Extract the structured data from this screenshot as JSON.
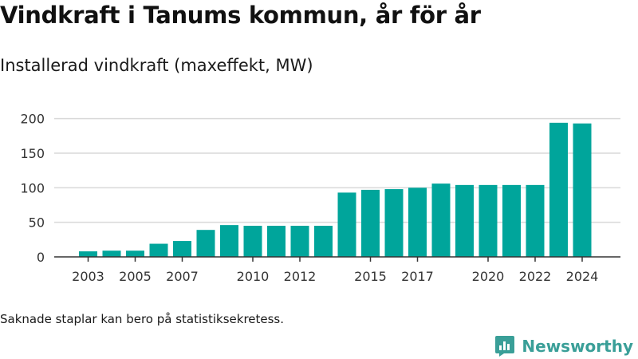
{
  "header": {
    "title": "Vindkraft i Tanums kommun, år för år",
    "subtitle": "Installerad vindkraft (maxeffekt, MW)"
  },
  "footnote": "Saknade staplar kan bero på statistiksekretess.",
  "brand": {
    "name": "Newsworthy",
    "icon": "newsworthy-logo-icon",
    "color": "#3a9f98"
  },
  "colors": {
    "bar": "#00a59b",
    "grid": "#d9d9d9",
    "axis": "#333333"
  },
  "chart_data": {
    "type": "bar",
    "title": "",
    "xlabel": "",
    "ylabel": "",
    "ylim": [
      0,
      210
    ],
    "yticks": [
      0,
      50,
      100,
      150,
      200
    ],
    "xtick_labels": [
      "2003",
      "2005",
      "2007",
      "2010",
      "2012",
      "2015",
      "2017",
      "2020",
      "2022",
      "2024"
    ],
    "categories": [
      "2003",
      "2004",
      "2005",
      "2006",
      "2007",
      "2008",
      "2009",
      "2010",
      "2011",
      "2012",
      "2013",
      "2014",
      "2015",
      "2016",
      "2017",
      "2018",
      "2019",
      "2020",
      "2021",
      "2022",
      "2023",
      "2024"
    ],
    "values": [
      8,
      9,
      9,
      19,
      23,
      39,
      46,
      45,
      45,
      45,
      45,
      93,
      97,
      98,
      100,
      106,
      104,
      104,
      104,
      104,
      194,
      193
    ],
    "grid": true,
    "legend": "none"
  }
}
